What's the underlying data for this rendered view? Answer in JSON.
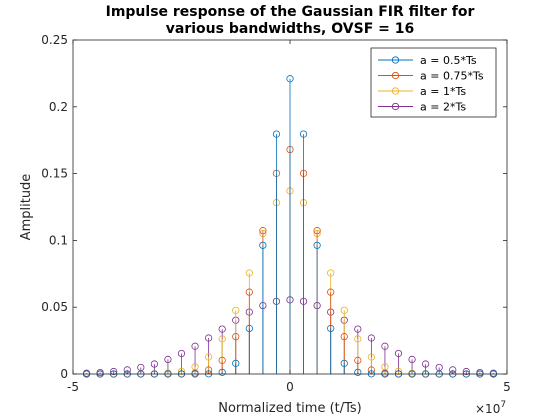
{
  "chart_data": {
    "type": "stem",
    "title_lines": [
      "Impulse response of the Gaussian FIR filter for",
      "various bandwidths, OVSF = 16"
    ],
    "xlabel": "Normalized time (t/Ts)",
    "ylabel": "Amplitude",
    "x_exponent_label": "×10",
    "x_exponent_power": "7",
    "xlim": [
      -5,
      5
    ],
    "ylim": [
      0,
      0.25
    ],
    "x_ticks": [
      -5,
      0,
      5
    ],
    "x_tick_labels": [
      "-5",
      "0",
      "5"
    ],
    "y_ticks": [
      0,
      0.05,
      0.1,
      0.15,
      0.2,
      0.25
    ],
    "y_tick_labels": [
      "0",
      "0.05",
      "0.1",
      "0.15",
      "0.2",
      "0.25"
    ],
    "grid": false,
    "legend_position": "top-right",
    "x_sample_step": 0.3125,
    "x_sample_range": [
      -4.6875,
      4.6875
    ],
    "series": [
      {
        "name": "a = 0.5*Ts",
        "color": "#0072bd",
        "peak": 0.221,
        "sigma": 0.485
      },
      {
        "name": "a = 0.75*Ts",
        "color": "#d95319",
        "peak": 0.168,
        "sigma": 0.66
      },
      {
        "name": "a = 1*Ts",
        "color": "#edb120",
        "peak": 0.137,
        "sigma": 0.86
      },
      {
        "name": "a = 2*Ts",
        "color": "#7e2f8e",
        "peak": 0.0555,
        "sigma": 1.56
      }
    ]
  }
}
